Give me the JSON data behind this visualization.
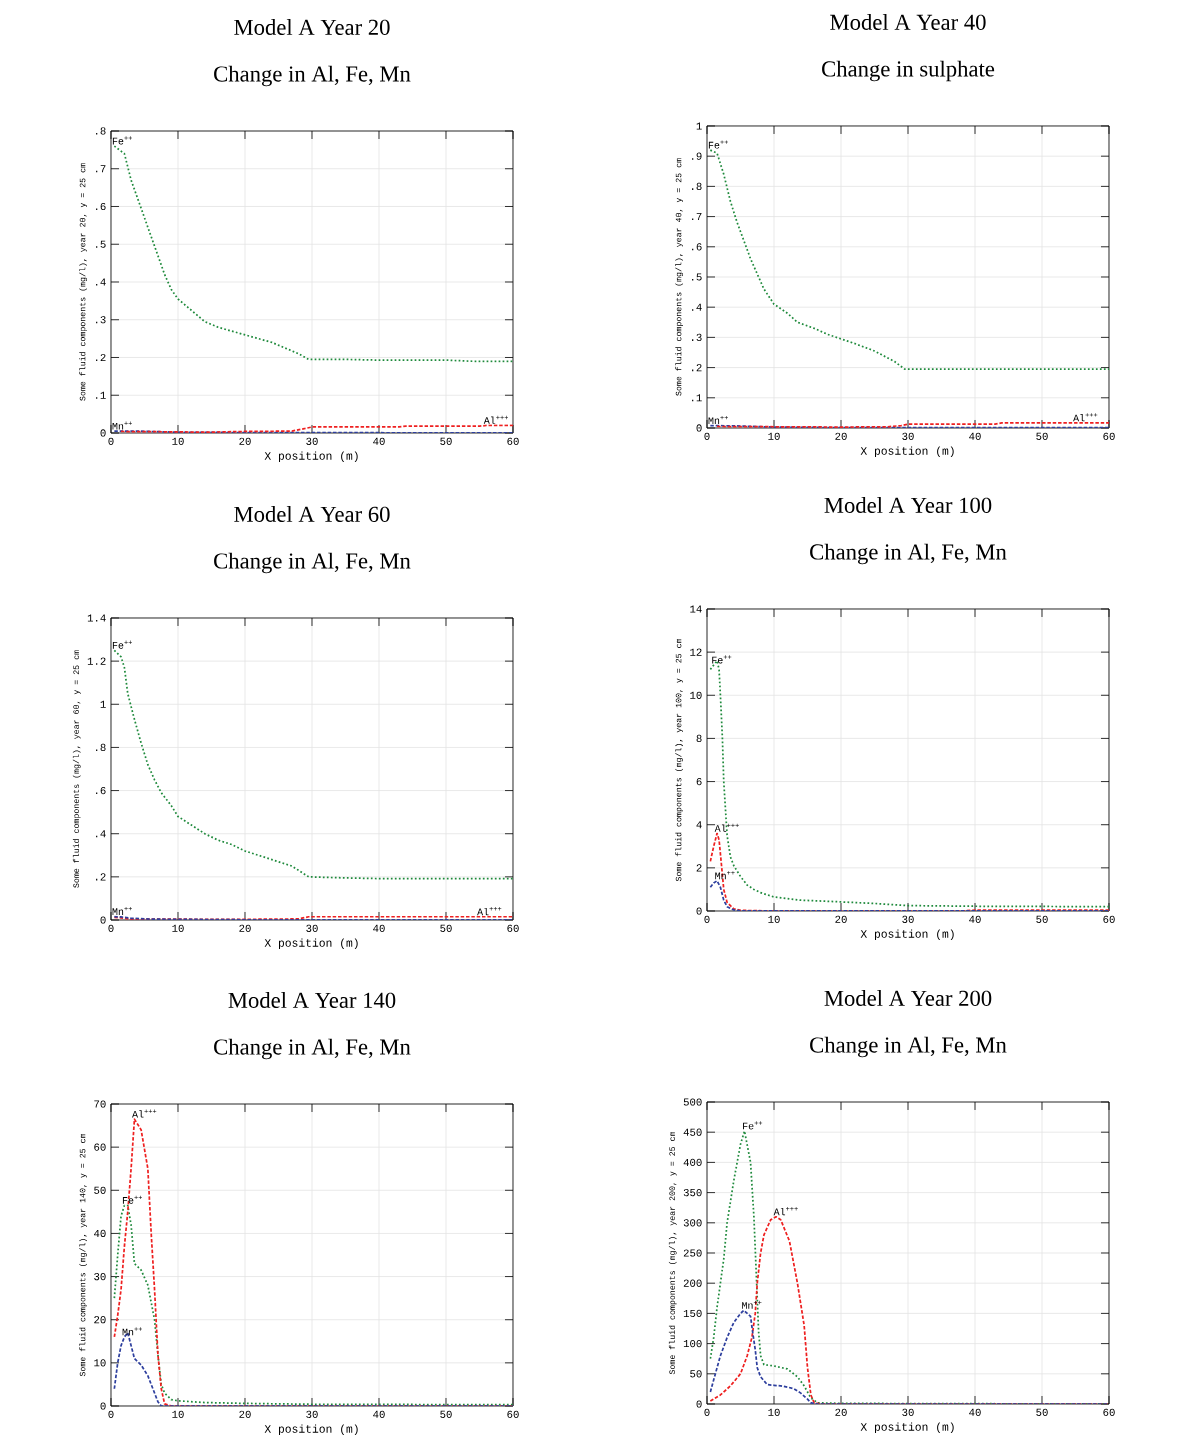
{
  "chart_data": [
    {
      "type": "line",
      "title": "Model A Year 20",
      "subtitle": "Change in Al, Fe, Mn",
      "xlabel": "X position (m)",
      "ylabel": "Some fluid components (mg/l), year 20, y = 25 cm",
      "xlim": [
        0,
        60
      ],
      "xticks": [
        0,
        10,
        20,
        30,
        40,
        50,
        60
      ],
      "ylim": [
        0,
        0.8
      ],
      "yticks": [
        0,
        {
          "value": 0.1,
          "label": ".1"
        },
        {
          "value": 0.2,
          "label": ".2"
        },
        {
          "value": 0.3,
          "label": ".3"
        },
        {
          "value": 0.4,
          "label": ".4"
        },
        {
          "value": 0.5,
          "label": ".5"
        },
        {
          "value": 0.6,
          "label": ".6"
        },
        {
          "value": 0.7,
          "label": ".7"
        },
        {
          "value": 0.8,
          "label": ".8"
        }
      ],
      "grid": true,
      "series": [
        {
          "color": "#1f8a3c",
          "line_style": "dotted",
          "x": [
            0.5,
            2,
            3,
            4,
            5,
            6,
            7,
            8,
            9,
            10,
            12,
            14,
            16,
            20,
            24,
            28,
            29.5,
            35,
            40,
            50,
            54,
            60
          ],
          "values": [
            0.76,
            0.74,
            0.67,
            0.62,
            0.57,
            0.52,
            0.47,
            0.42,
            0.38,
            0.355,
            0.325,
            0.295,
            0.28,
            0.26,
            0.24,
            0.21,
            0.195,
            0.195,
            0.193,
            0.193,
            0.19,
            0.19
          ]
        },
        {
          "color": "#2e3f9e",
          "line_style": "dashed",
          "x": [
            0.5,
            4,
            10,
            20,
            30,
            60
          ],
          "values": [
            0.005,
            0.005,
            0.002,
            0.001,
            0.001,
            0
          ]
        },
        {
          "color": "#ee2020",
          "line_style": "dashed",
          "x": [
            1.5,
            10,
            14,
            20,
            27,
            29,
            30,
            43,
            44,
            55,
            56,
            60
          ],
          "values": [
            0.004,
            0.003,
            0.002,
            0.004,
            0.005,
            0.012,
            0.016,
            0.016,
            0.018,
            0.018,
            0.02,
            0.02
          ]
        }
      ],
      "annotations": [
        {
          "text": "Fe$^{++}$",
          "x": 0.5,
          "y": 0.76
        },
        {
          "text": "Mn$^{++}$",
          "x": 0.5,
          "y": 0.005
        },
        {
          "text": "Al$^{+++}$",
          "x": 56,
          "y": 0.02
        }
      ]
    },
    {
      "type": "line",
      "title": "Model A Year 40",
      "subtitle": "Change in sulphate",
      "xlabel": "X position (m)",
      "ylabel": "Some fluid components (mg/l), year 40, y = 25 cm",
      "xlim": [
        0,
        60
      ],
      "xticks": [
        0,
        10,
        20,
        30,
        40,
        50,
        60
      ],
      "ylim": [
        0,
        1
      ],
      "yticks": [
        0,
        {
          "value": 0.1,
          "label": ".1"
        },
        {
          "value": 0.2,
          "label": ".2"
        },
        {
          "value": 0.3,
          "label": ".3"
        },
        {
          "value": 0.4,
          "label": ".4"
        },
        {
          "value": 0.5,
          "label": ".5"
        },
        {
          "value": 0.6,
          "label": ".6"
        },
        {
          "value": 0.7,
          "label": ".7"
        },
        {
          "value": 0.8,
          "label": ".8"
        },
        {
          "value": 0.9,
          "label": ".9"
        },
        1
      ],
      "grid": true,
      "series": [
        {
          "color": "#1f8a3c",
          "line_style": "dotted",
          "x": [
            0.5,
            1.5,
            2.5,
            3.5,
            4.5,
            5.5,
            6.5,
            7.5,
            8.5,
            10,
            12,
            13.5,
            16,
            18,
            20,
            22,
            25,
            28,
            29.5,
            40,
            60
          ],
          "values": [
            0.92,
            0.91,
            0.84,
            0.75,
            0.68,
            0.62,
            0.56,
            0.51,
            0.46,
            0.41,
            0.38,
            0.35,
            0.33,
            0.31,
            0.295,
            0.28,
            0.255,
            0.22,
            0.195,
            0.195,
            0.195
          ]
        },
        {
          "color": "#2e3f9e",
          "line_style": "dashed",
          "x": [
            0.5,
            4,
            10,
            20,
            30,
            60
          ],
          "values": [
            0.008,
            0.007,
            0.003,
            0.001,
            0.001,
            0.001
          ]
        },
        {
          "color": "#ee2020",
          "line_style": "dashed",
          "x": [
            1.5,
            20,
            27,
            29,
            30,
            43,
            44,
            60
          ],
          "values": [
            0.005,
            0.003,
            0.004,
            0.008,
            0.013,
            0.013,
            0.017,
            0.017
          ]
        }
      ],
      "annotations": [
        {
          "text": "Fe$^{++}$",
          "x": 0.5,
          "y": 0.92
        },
        {
          "text": "Mn$^{++}$",
          "x": 0.5,
          "y": 0.008
        },
        {
          "text": "Al$^{+++}$",
          "x": 55,
          "y": 0.017
        }
      ]
    },
    {
      "type": "line",
      "title": "Model A Year 60",
      "subtitle": "Change in Al, Fe, Mn",
      "xlabel": "X position (m)",
      "ylabel": "Some fluid components (mg/l), year 60, y = 25 cm",
      "xlim": [
        0,
        60
      ],
      "xticks": [
        0,
        10,
        20,
        30,
        40,
        50,
        60
      ],
      "ylim": [
        0,
        1.4
      ],
      "yticks": [
        0,
        {
          "value": 0.2,
          "label": ".2"
        },
        {
          "value": 0.4,
          "label": ".4"
        },
        {
          "value": 0.6,
          "label": ".6"
        },
        {
          "value": 0.8,
          "label": ".8"
        },
        1,
        1.2,
        1.4
      ],
      "grid": true,
      "series": [
        {
          "color": "#1f8a3c",
          "line_style": "dotted",
          "x": [
            0.5,
            1.5,
            2,
            2.5,
            3.5,
            4.5,
            5.5,
            6.5,
            7.5,
            9,
            10,
            12,
            14,
            16,
            18,
            20,
            22,
            25,
            27,
            29.5,
            35,
            40,
            60
          ],
          "values": [
            1.25,
            1.22,
            1.17,
            1.05,
            0.93,
            0.82,
            0.72,
            0.65,
            0.59,
            0.53,
            0.48,
            0.44,
            0.4,
            0.37,
            0.35,
            0.32,
            0.3,
            0.27,
            0.25,
            0.2,
            0.195,
            0.192,
            0.192
          ]
        },
        {
          "color": "#ee2020",
          "line_style": "dashed",
          "x": [
            0.5,
            1.5,
            3,
            20,
            28,
            29.5,
            60
          ],
          "values": [
            0.012,
            0.01,
            0.004,
            0.003,
            0.005,
            0.015,
            0.015
          ]
        },
        {
          "color": "#2e3f9e",
          "line_style": "dashed",
          "x": [
            0.5,
            1.5,
            3,
            6,
            10,
            20,
            60
          ],
          "values": [
            0.016,
            0.014,
            0.008,
            0.004,
            0.003,
            0.001,
            0
          ]
        }
      ],
      "annotations": [
        {
          "text": "Fe$^{++}$",
          "x": 0.5,
          "y": 1.25
        },
        {
          "text": "Mn$^{++}$",
          "x": 0.5,
          "y": 0.016
        },
        {
          "text": "Al$^{+++}$",
          "x": 55,
          "y": 0.015
        }
      ]
    },
    {
      "type": "line",
      "title": "Model A Year 100",
      "subtitle": "Change in Al, Fe, Mn",
      "xlabel": "X position (m)",
      "ylabel": "Some fluid components (mg/l), year 100, y = 25 cm",
      "xlim": [
        0,
        60
      ],
      "xticks": [
        0,
        10,
        20,
        30,
        40,
        50,
        60
      ],
      "ylim": [
        0,
        14
      ],
      "yticks": [
        0,
        2,
        4,
        6,
        8,
        10,
        12,
        14
      ],
      "grid": true,
      "series": [
        {
          "color": "#1f8a3c",
          "line_style": "dotted",
          "x": [
            0.5,
            1,
            1.5,
            1.8,
            2,
            2.3,
            2.5,
            2.8,
            3,
            3.5,
            4,
            5,
            6,
            7,
            8,
            10,
            14,
            18,
            25,
            30,
            40,
            60
          ],
          "values": [
            11.2,
            11.4,
            11.6,
            11.2,
            10,
            8,
            6,
            4.5,
            3.5,
            2.5,
            2.1,
            1.6,
            1.2,
            1.0,
            0.85,
            0.65,
            0.5,
            0.45,
            0.35,
            0.25,
            0.22,
            0.2
          ]
        },
        {
          "color": "#ee2020",
          "line_style": "dashed",
          "x": [
            0.5,
            1,
            1.5,
            1.8,
            2.2,
            2.5,
            3,
            4,
            5,
            10,
            38,
            40,
            60
          ],
          "values": [
            2.3,
            3.0,
            3.6,
            3.3,
            2,
            1,
            0.4,
            0.1,
            0.03,
            0,
            0,
            0.04,
            0.04
          ]
        },
        {
          "color": "#2e3f9e",
          "line_style": "dashed",
          "x": [
            0.5,
            1,
            1.5,
            2,
            2.5,
            3,
            4,
            5,
            60
          ],
          "values": [
            1.1,
            1.3,
            1.4,
            1.1,
            0.5,
            0.2,
            0.05,
            0,
            0
          ]
        }
      ],
      "annotations": [
        {
          "text": "Fe$^{++}$",
          "x": 1,
          "y": 11.4
        },
        {
          "text": "Al$^{+++}$",
          "x": 1.5,
          "y": 3.6
        },
        {
          "text": "Mn$^{++}$",
          "x": 1.5,
          "y": 1.4
        }
      ]
    },
    {
      "type": "line",
      "title": "Model A Year 140",
      "subtitle": "Change in Al, Fe, Mn",
      "xlabel": "X position (m)",
      "ylabel": "Some fluid components (mg/l), year 140, y = 25 cm",
      "xlim": [
        0,
        60
      ],
      "xticks": [
        0,
        10,
        20,
        30,
        40,
        50,
        60
      ],
      "ylim": [
        0,
        70
      ],
      "yticks": [
        0,
        10,
        20,
        30,
        40,
        50,
        60,
        70
      ],
      "grid": true,
      "series": [
        {
          "color": "#1f8a3c",
          "line_style": "dotted",
          "x": [
            0.5,
            1,
            1.5,
            2,
            2.5,
            3,
            3.5,
            4.5,
            5.5,
            6.5,
            7,
            7.5,
            8,
            9,
            10,
            14,
            20,
            30,
            60
          ],
          "values": [
            25,
            35,
            44,
            46.5,
            46.5,
            42,
            33,
            31.5,
            28,
            20,
            12,
            5,
            3,
            1.5,
            1.2,
            0.8,
            0.6,
            0.4,
            0.3
          ]
        },
        {
          "color": "#ee2020",
          "line_style": "dashed",
          "x": [
            0.5,
            1,
            1.5,
            2,
            2.5,
            3,
            3.5,
            4.5,
            5.5,
            6,
            6.5,
            7,
            7.5,
            8,
            9,
            60
          ],
          "values": [
            16,
            21,
            27,
            37,
            45,
            55,
            66.5,
            64,
            55,
            40,
            27,
            12,
            4,
            0.5,
            0,
            0
          ]
        },
        {
          "color": "#2e3f9e",
          "line_style": "dashed",
          "x": [
            0.5,
            1,
            1.5,
            2,
            2.5,
            3,
            3.5,
            4.5,
            5.5,
            6.5,
            7,
            7.5,
            60
          ],
          "values": [
            4,
            10,
            14,
            16,
            17,
            14,
            11,
            9.5,
            7,
            3,
            1,
            0,
            0
          ]
        }
      ],
      "annotations": [
        {
          "text": "Al$^{+++}$",
          "x": 3.5,
          "y": 66.5
        },
        {
          "text": "Fe$^{++}$",
          "x": 2,
          "y": 46.5
        },
        {
          "text": "Mn$^{++}$",
          "x": 2,
          "y": 16
        }
      ]
    },
    {
      "type": "line",
      "title": "Model A Year 200",
      "subtitle": "Change in Al, Fe, Mn",
      "xlabel": "X position (m)",
      "ylabel": "Some fluid components (mg/l), year 200, y = 25 cm",
      "xlim": [
        0,
        60
      ],
      "xticks": [
        0,
        10,
        20,
        30,
        40,
        50,
        60
      ],
      "ylim": [
        0,
        500
      ],
      "yticks": [
        0,
        50,
        100,
        150,
        200,
        250,
        300,
        350,
        400,
        450,
        500
      ],
      "grid": true,
      "series": [
        {
          "color": "#1f8a3c",
          "line_style": "dotted",
          "x": [
            0.5,
            1,
            1.5,
            2.5,
            3,
            4,
            5,
            5.6,
            6.5,
            7,
            7.3,
            7.7,
            8,
            8.5,
            10,
            12,
            13.5,
            14.5,
            15.5,
            16.5,
            20,
            60
          ],
          "values": [
            75,
            110,
            160,
            240,
            300,
            370,
            430,
            452,
            400,
            310,
            230,
            120,
            80,
            65,
            63,
            58,
            45,
            30,
            10,
            2,
            1,
            0
          ]
        },
        {
          "color": "#ee2020",
          "line_style": "dashed",
          "x": [
            0.5,
            2,
            3.5,
            5,
            6,
            6.7,
            7.2,
            7.5,
            8,
            8.5,
            9.5,
            10.3,
            11,
            12.3,
            13.5,
            14.5,
            15,
            15.5,
            16,
            17,
            60
          ],
          "values": [
            5,
            15,
            30,
            50,
            80,
            110,
            150,
            200,
            250,
            280,
            305,
            310,
            305,
            270,
            200,
            130,
            60,
            15,
            2,
            0,
            0
          ]
        },
        {
          "color": "#2e3f9e",
          "line_style": "dashed",
          "x": [
            0.5,
            1,
            2,
            3,
            4,
            5,
            5.5,
            6.5,
            6.8,
            7.2,
            7.5,
            8,
            9,
            10,
            11,
            12,
            13,
            14,
            15,
            15.5,
            16.5,
            60
          ],
          "values": [
            20,
            40,
            80,
            110,
            135,
            150,
            155,
            145,
            120,
            90,
            60,
            45,
            32,
            31,
            30,
            28,
            25,
            18,
            8,
            2,
            0,
            0
          ]
        }
      ],
      "annotations": [
        {
          "text": "Fe$^{++}$",
          "x": 5.6,
          "y": 452
        },
        {
          "text": "Al$^{+++}$",
          "x": 10.3,
          "y": 310
        },
        {
          "text": "Mn$^{++}$",
          "x": 5.5,
          "y": 155
        }
      ]
    }
  ]
}
